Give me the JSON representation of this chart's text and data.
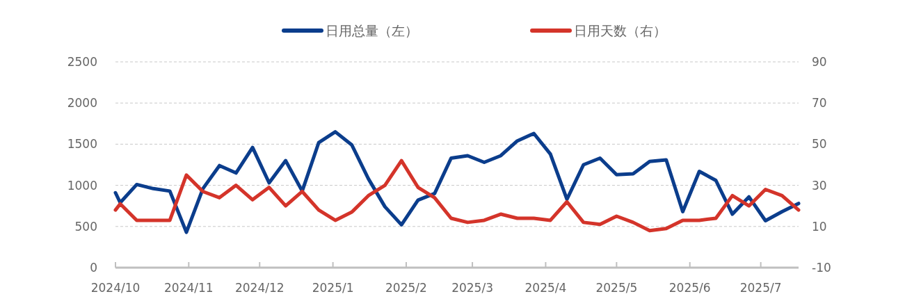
{
  "chart_data": {
    "type": "line",
    "x": [
      "2024-10-01",
      "2024-10-03",
      "2024-10-10",
      "2024-10-17",
      "2024-10-24",
      "2024-10-31",
      "2024-11-07",
      "2024-11-14",
      "2024-11-21",
      "2024-11-28",
      "2024-12-05",
      "2024-12-12",
      "2024-12-19",
      "2024-12-26",
      "2025-01-02",
      "2025-01-09",
      "2025-01-16",
      "2025-01-23",
      "2025-01-30",
      "2025-02-06",
      "2025-02-13",
      "2025-02-20",
      "2025-02-27",
      "2025-03-06",
      "2025-03-13",
      "2025-03-20",
      "2025-03-27",
      "2025-04-03",
      "2025-04-10",
      "2025-04-17",
      "2025-04-24",
      "2025-05-01",
      "2025-05-08",
      "2025-05-15",
      "2025-05-22",
      "2025-05-29",
      "2025-06-05",
      "2025-06-12",
      "2025-06-19",
      "2025-06-26",
      "2025-07-03",
      "2025-07-10",
      "2025-07-17"
    ],
    "series": [
      {
        "name": "日用总量（左）",
        "color": "#0b3d8c",
        "axis": "y",
        "values": [
          910,
          790,
          1010,
          960,
          930,
          430,
          960,
          1240,
          1150,
          1460,
          1030,
          1300,
          930,
          1520,
          1650,
          1490,
          1080,
          740,
          520,
          820,
          900,
          1330,
          1360,
          1280,
          1360,
          1540,
          1630,
          1380,
          830,
          1250,
          1330,
          1130,
          1140,
          1290,
          1310,
          680,
          1170,
          1060,
          650,
          860,
          570,
          680,
          780
        ]
      },
      {
        "name": "日用天数（右）",
        "color": "#d4342a",
        "axis": "y2",
        "values": [
          18,
          21,
          13,
          13,
          13,
          35,
          27,
          24,
          30,
          23,
          29,
          20,
          27,
          18,
          13,
          17,
          25,
          30,
          42,
          29,
          24,
          14,
          12,
          13,
          16,
          14,
          14,
          13,
          22,
          12,
          11,
          15,
          12,
          8,
          9,
          13,
          13,
          14,
          25,
          20,
          28,
          25,
          18
        ]
      }
    ],
    "xlim": [
      "2024-10-01",
      "2025-07-17"
    ],
    "xticks": [
      {
        "value": "2024-10-01",
        "label": "2024/10"
      },
      {
        "value": "2024-11-01",
        "label": "2024/11"
      },
      {
        "value": "2024-12-01",
        "label": "2024/12"
      },
      {
        "value": "2025-01-01",
        "label": "2025/1"
      },
      {
        "value": "2025-02-01",
        "label": "2025/2"
      },
      {
        "value": "2025-03-01",
        "label": "2025/3"
      },
      {
        "value": "2025-04-01",
        "label": "2025/4"
      },
      {
        "value": "2025-05-01",
        "label": "2025/5"
      },
      {
        "value": "2025-06-01",
        "label": "2025/6"
      },
      {
        "value": "2025-07-01",
        "label": "2025/7"
      }
    ],
    "ylim": [
      0,
      2500
    ],
    "yticks": [
      0,
      500,
      1000,
      1500,
      2000,
      2500
    ],
    "y2lim": [
      -10,
      90
    ],
    "y2ticks": [
      -10,
      10,
      30,
      50,
      70,
      90
    ],
    "grid": "y",
    "legend": "top",
    "marker": "none",
    "line_style": "solid"
  }
}
